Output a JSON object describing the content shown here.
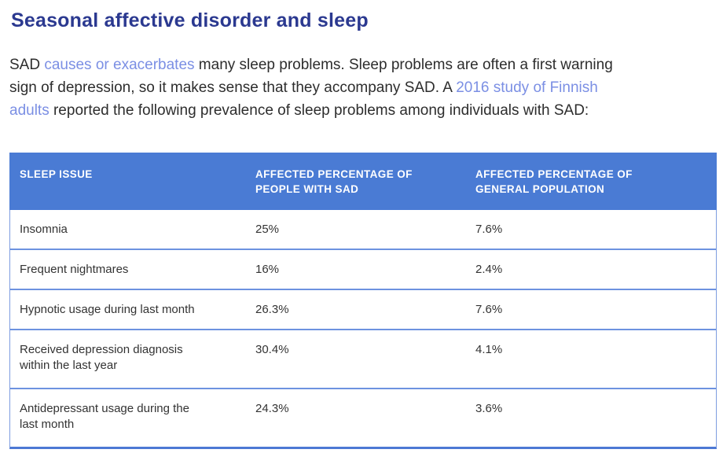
{
  "heading": "Seasonal affective disorder and sleep",
  "paragraph": {
    "line1": [
      {
        "text": "SAD "
      },
      {
        "text": "causes or exacerbates",
        "link": true
      },
      {
        "text": " many sleep problems. Sleep problems are often a first warning"
      }
    ],
    "line2": [
      {
        "text": "sign of depression, so it makes sense that they accompany SAD. A "
      },
      {
        "text": "2016 study of Finnish",
        "link": true
      }
    ],
    "line3": [
      {
        "text": "adults",
        "link": true
      },
      {
        "text": " reported the following prevalence of sleep problems among individuals with SAD:"
      }
    ]
  },
  "table": {
    "headers": [
      "SLEEP ISSUE",
      "AFFECTED PERCENTAGE OF\nPEOPLE WITH SAD",
      "AFFECTED PERCENTAGE OF\nGENERAL POPULATION"
    ],
    "rows": [
      {
        "issue": "Insomnia",
        "sad": "25%",
        "general": "7.6%"
      },
      {
        "issue": "Frequent nightmares",
        "sad": "16%",
        "general": "2.4%"
      },
      {
        "issue": "Hypnotic usage during last month",
        "sad": "26.3%",
        "general": "7.6%"
      },
      {
        "issue": "Received depression diagnosis\nwithin the last year",
        "sad": "30.4%",
        "general": "4.1%"
      },
      {
        "issue": "Antidepressant usage during the\nlast month",
        "sad": "24.3%",
        "general": "3.6%"
      }
    ]
  },
  "colors": {
    "heading": "#2b3990",
    "link": "#7b8fe4",
    "table_header_bg": "#4a7bd4",
    "row_divider": "#6d92e0",
    "table_bottom_border": "#4d79d4",
    "body_text": "#2d2d2d"
  }
}
